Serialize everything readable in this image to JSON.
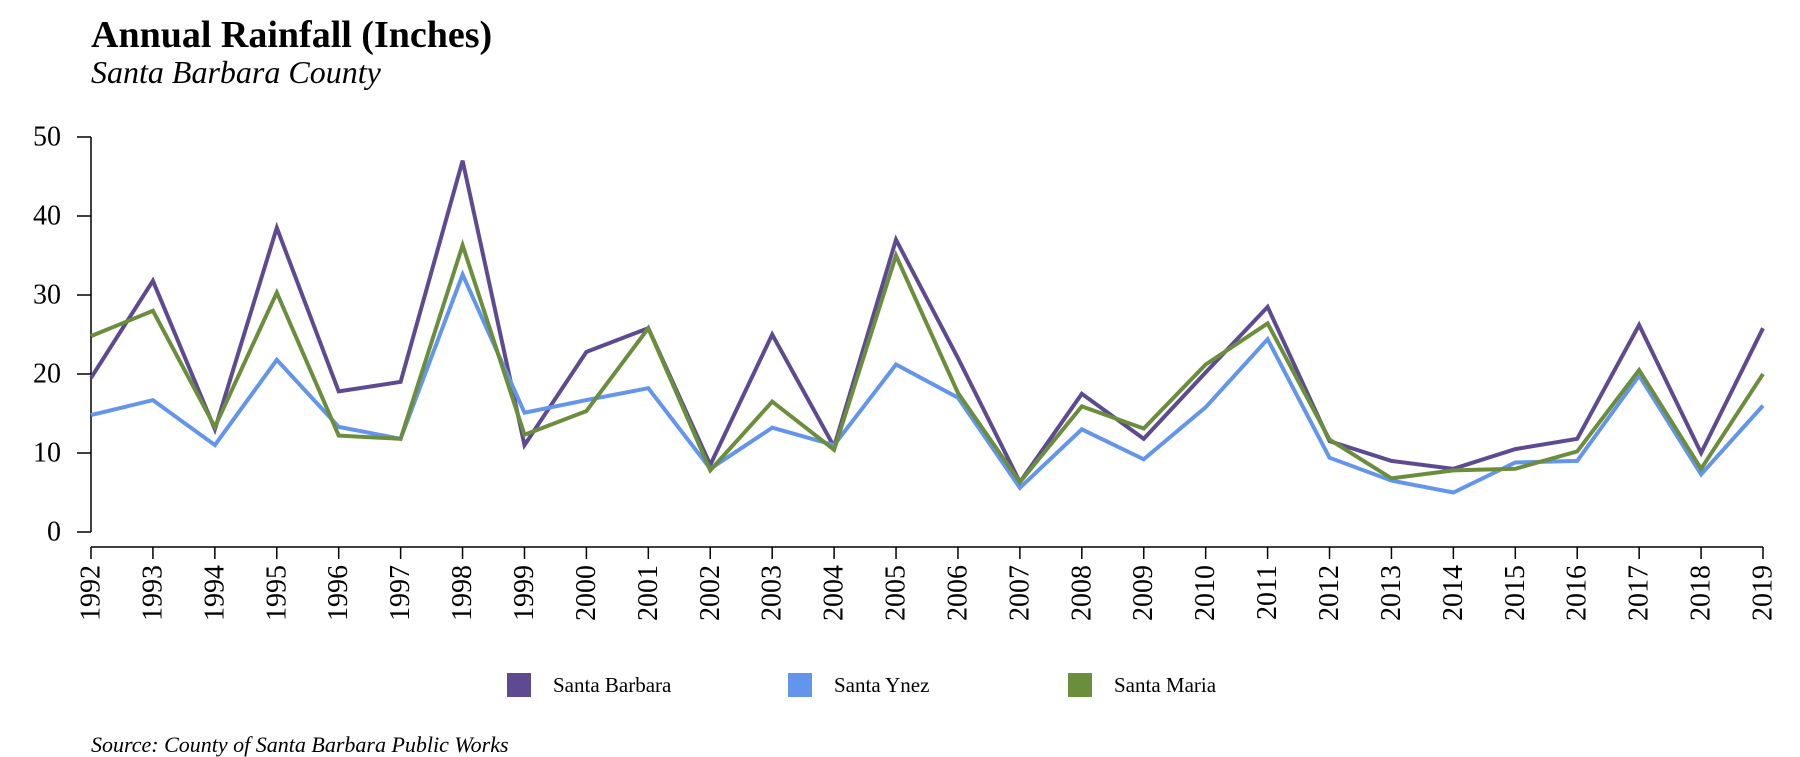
{
  "chart_data": {
    "type": "line",
    "title": "Annual Rainfall (Inches)",
    "subtitle": "Santa Barbara County",
    "source": "Source: County of Santa Barbara Public Works",
    "xlabel": "",
    "ylabel": "",
    "ylim": [
      0,
      50
    ],
    "yticks": [
      0,
      10,
      20,
      30,
      40,
      50
    ],
    "grid": false,
    "legend_position": "bottom",
    "x": [
      "1992",
      "1993",
      "1994",
      "1995",
      "1996",
      "1997",
      "1998",
      "1999",
      "2000",
      "2001",
      "2002",
      "2003",
      "2004",
      "2005",
      "2006",
      "2007",
      "2008",
      "2009",
      "2010",
      "2011",
      "2012",
      "2013",
      "2014",
      "2015",
      "2016",
      "2017",
      "2018",
      "2019"
    ],
    "series": [
      {
        "name": "Santa Barbara",
        "color": "#5e4a91",
        "values": [
          19.5,
          31.8,
          13.0,
          38.5,
          17.8,
          19.0,
          47.0,
          11.0,
          22.8,
          25.8,
          8.5,
          25.0,
          10.8,
          37.0,
          22.0,
          6.3,
          17.5,
          11.8,
          20.2,
          28.5,
          11.5,
          9.0,
          8.0,
          10.5,
          11.8,
          26.2,
          10.0,
          25.8
        ]
      },
      {
        "name": "Santa Ynez",
        "color": "#6495ed",
        "values": [
          14.8,
          16.7,
          11.0,
          21.8,
          13.3,
          11.8,
          32.6,
          15.1,
          16.7,
          18.2,
          8.0,
          13.2,
          11.0,
          21.2,
          17.0,
          5.6,
          13.0,
          9.2,
          15.8,
          24.4,
          9.4,
          6.5,
          5.0,
          8.8,
          9.0,
          19.8,
          7.3,
          16.0
        ]
      },
      {
        "name": "Santa Maria",
        "color": "#6b8e3c",
        "values": [
          24.8,
          28.0,
          13.3,
          30.3,
          12.2,
          11.8,
          36.3,
          12.3,
          15.3,
          25.8,
          7.8,
          16.5,
          10.4,
          35.0,
          17.6,
          6.3,
          15.9,
          13.1,
          21.2,
          26.4,
          11.7,
          6.8,
          7.8,
          8.0,
          10.2,
          20.5,
          8.0,
          20.0
        ]
      }
    ]
  }
}
